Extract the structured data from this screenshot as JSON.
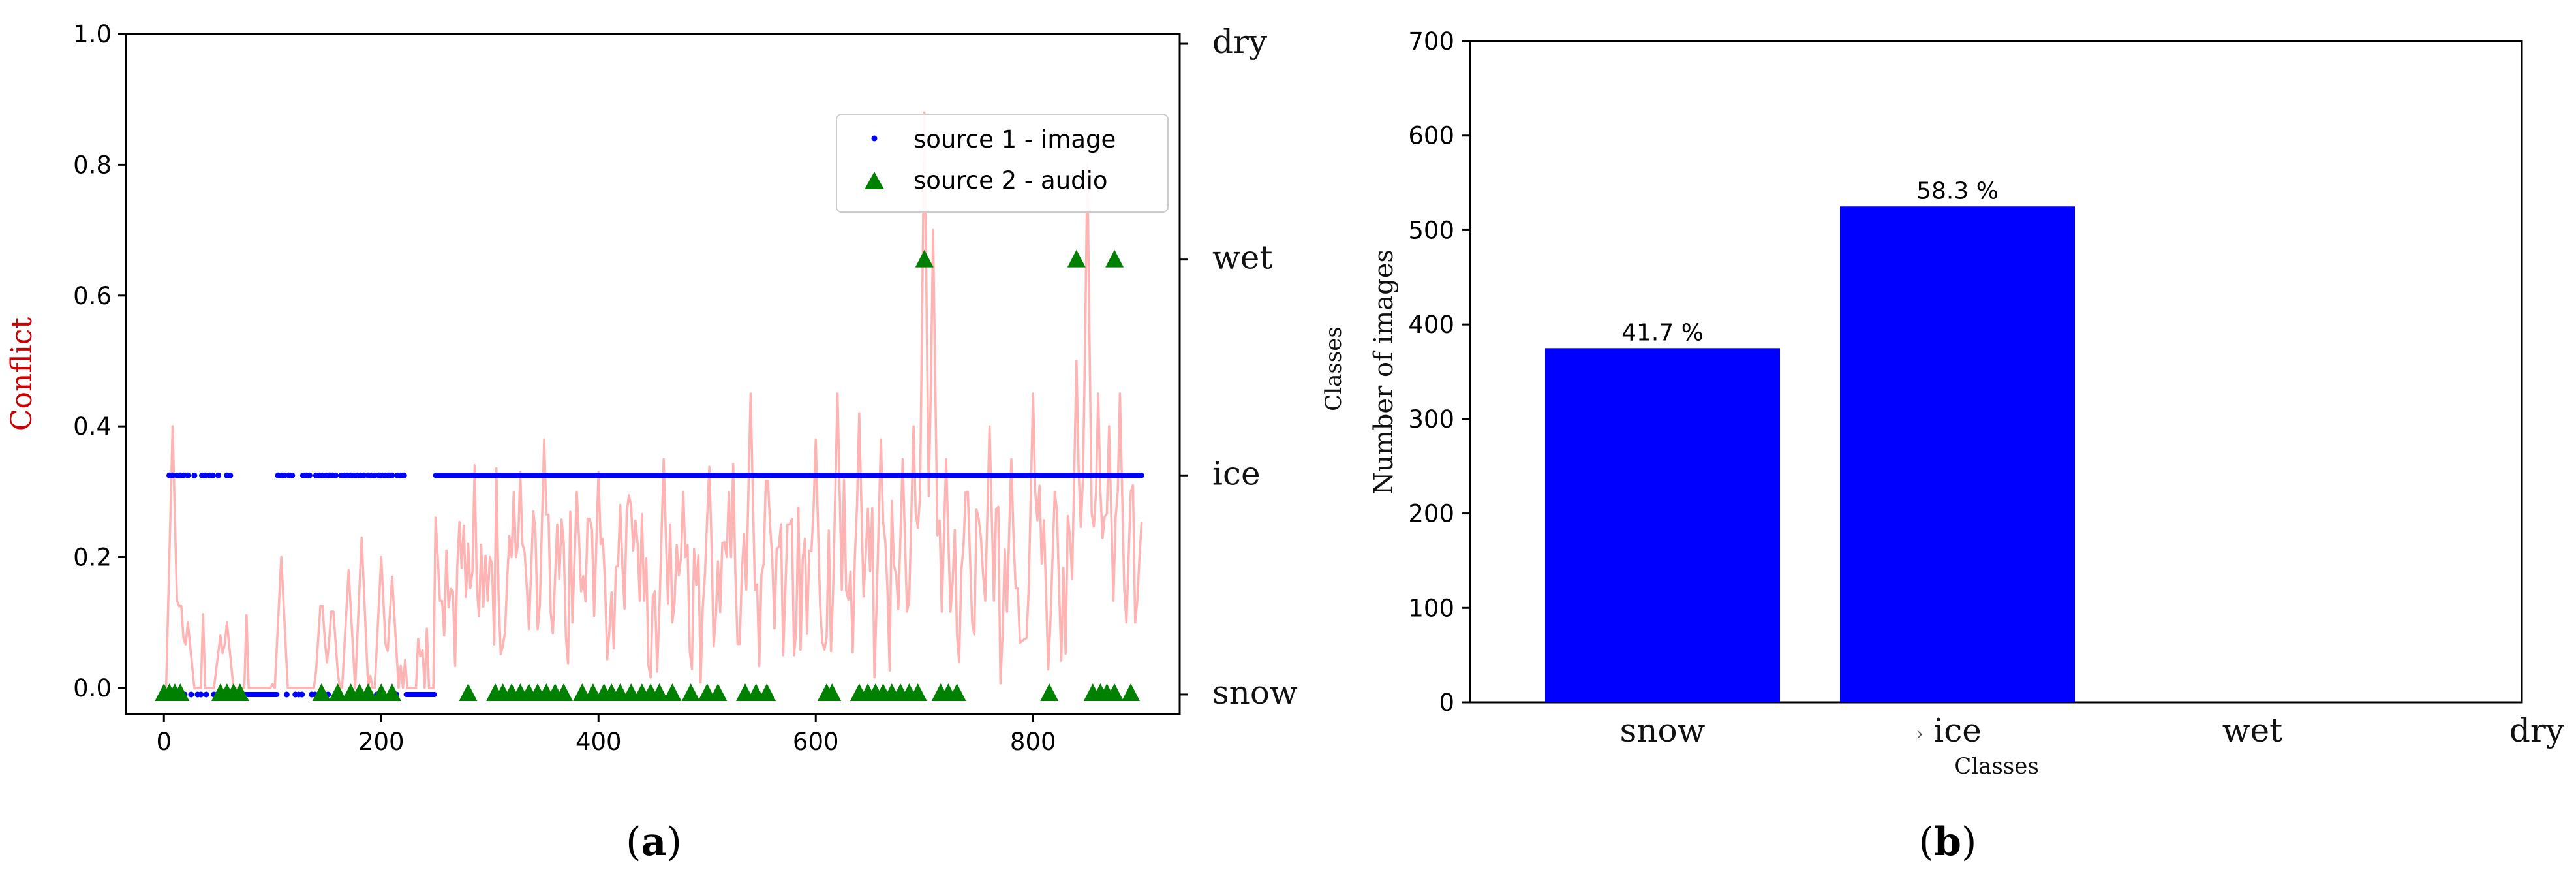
{
  "chart_data": [
    {
      "panel": "(a)",
      "type": "scatter",
      "ylabel": "Conflict",
      "xlim": [
        -35,
        935
      ],
      "ylim": [
        -0.04,
        1.0
      ],
      "x_ticks": [
        0,
        200,
        400,
        600,
        800
      ],
      "y_ticks": [
        "0.0",
        "0.2",
        "0.4",
        "0.6",
        "0.8",
        "1.0"
      ],
      "right_axis_ticks": [
        "snow",
        "ice",
        "wet",
        "dry"
      ],
      "right_axis_positions": [
        -0.01,
        0.325,
        0.655,
        0.985
      ],
      "legend_position": "top-right",
      "series": [
        {
          "name": "source 1 - image",
          "color": "#0000ff",
          "marker": "dot",
          "class_level": "ice",
          "segments_ice": [
            [
              5,
              8
            ],
            [
              12,
              18
            ],
            [
              22,
              24
            ],
            [
              28,
              30
            ],
            [
              35,
              38
            ],
            [
              42,
              45
            ],
            [
              50,
              52
            ],
            [
              58,
              62
            ],
            [
              105,
              112
            ],
            [
              115,
              120
            ],
            [
              128,
              135
            ],
            [
              140,
              150
            ],
            [
              152,
              160
            ],
            [
              163,
              172
            ],
            [
              175,
              185
            ],
            [
              188,
              195
            ],
            [
              198,
              210
            ],
            [
              215,
              222
            ],
            [
              250,
              900
            ]
          ],
          "class_level_other": "snow",
          "segments_snow": [
            [
              0,
              4
            ],
            [
              9,
              11
            ],
            [
              19,
              21
            ],
            [
              25,
              27
            ],
            [
              31,
              34
            ],
            [
              39,
              41
            ],
            [
              46,
              49
            ],
            [
              53,
              57
            ],
            [
              63,
              104
            ],
            [
              113,
              114
            ],
            [
              121,
              127
            ],
            [
              136,
              139
            ],
            [
              151,
              151
            ],
            [
              161,
              162
            ],
            [
              173,
              174
            ],
            [
              186,
              187
            ],
            [
              196,
              197
            ],
            [
              211,
              214
            ],
            [
              223,
              249
            ]
          ]
        },
        {
          "name": "source 2 - audio",
          "color": "#008000",
          "marker": "triangle",
          "wet_points_x": [
            700,
            840,
            875
          ],
          "snow_points_x": [
            0,
            5,
            10,
            15,
            52,
            58,
            64,
            70,
            145,
            160,
            172,
            180,
            188,
            200,
            210,
            280,
            305,
            312,
            320,
            328,
            336,
            344,
            352,
            360,
            368,
            385,
            395,
            405,
            412,
            420,
            430,
            440,
            448,
            456,
            468,
            485,
            500,
            510,
            535,
            545,
            555,
            610,
            615,
            640,
            648,
            655,
            662,
            670,
            678,
            686,
            694,
            715,
            722,
            730,
            815,
            855,
            862,
            868,
            875,
            890
          ]
        },
        {
          "name": "conflict",
          "color": "#ffb3b3",
          "type": "line",
          "spikes": [
            [
              8,
              0.4
            ],
            [
              15,
              0.15
            ],
            [
              22,
              0.1
            ],
            [
              52,
              0.08
            ],
            [
              58,
              0.1
            ],
            [
              108,
              0.2
            ],
            [
              145,
              0.15
            ],
            [
              155,
              0.14
            ],
            [
              170,
              0.18
            ],
            [
              182,
              0.23
            ],
            [
              200,
              0.2
            ],
            [
              210,
              0.17
            ],
            [
              255,
              0.16
            ],
            [
              275,
              0.22
            ],
            [
              300,
              0.2
            ],
            [
              322,
              0.3
            ],
            [
              328,
              0.33
            ],
            [
              340,
              0.27
            ],
            [
              350,
              0.38
            ],
            [
              362,
              0.25
            ],
            [
              380,
              0.3
            ],
            [
              400,
              0.33
            ],
            [
              420,
              0.28
            ],
            [
              440,
              0.2
            ],
            [
              460,
              0.35
            ],
            [
              478,
              0.3
            ],
            [
              500,
              0.26
            ],
            [
              520,
              0.3
            ],
            [
              540,
              0.45
            ],
            [
              555,
              0.38
            ],
            [
              575,
              0.3
            ],
            [
              600,
              0.38
            ],
            [
              620,
              0.45
            ],
            [
              640,
              0.42
            ],
            [
              660,
              0.38
            ],
            [
              680,
              0.35
            ],
            [
              690,
              0.4
            ],
            [
              700,
              0.88
            ],
            [
              708,
              0.7
            ],
            [
              720,
              0.35
            ],
            [
              740,
              0.3
            ],
            [
              760,
              0.4
            ],
            [
              780,
              0.35
            ],
            [
              800,
              0.45
            ],
            [
              820,
              0.3
            ],
            [
              840,
              0.5
            ],
            [
              850,
              0.8
            ],
            [
              860,
              0.45
            ],
            [
              870,
              0.4
            ],
            [
              880,
              0.45
            ],
            [
              890,
              0.3
            ],
            [
              898,
              0.2
            ]
          ]
        }
      ]
    },
    {
      "panel": "(b)",
      "type": "bar",
      "categories": [
        "snow",
        "ice",
        "wet",
        "dry"
      ],
      "values": [
        375,
        525,
        0,
        0
      ],
      "data_labels": [
        "41.7 %",
        "58.3 %",
        "",
        ""
      ],
      "ylabel": "Number of images",
      "xlabel": "Classes",
      "stray_label": "Classes",
      "ylim": [
        0,
        700
      ],
      "y_ticks": [
        "0",
        "100",
        "200",
        "300",
        "400",
        "500",
        "600",
        "700"
      ],
      "bar_color": "#0000ff",
      "ice_prefix_glyph": "›"
    }
  ],
  "captions": {
    "a_open": "(",
    "a_letter": "a",
    "a_close": ")",
    "b_open": "(",
    "b_letter": "b",
    "b_close": ")"
  }
}
